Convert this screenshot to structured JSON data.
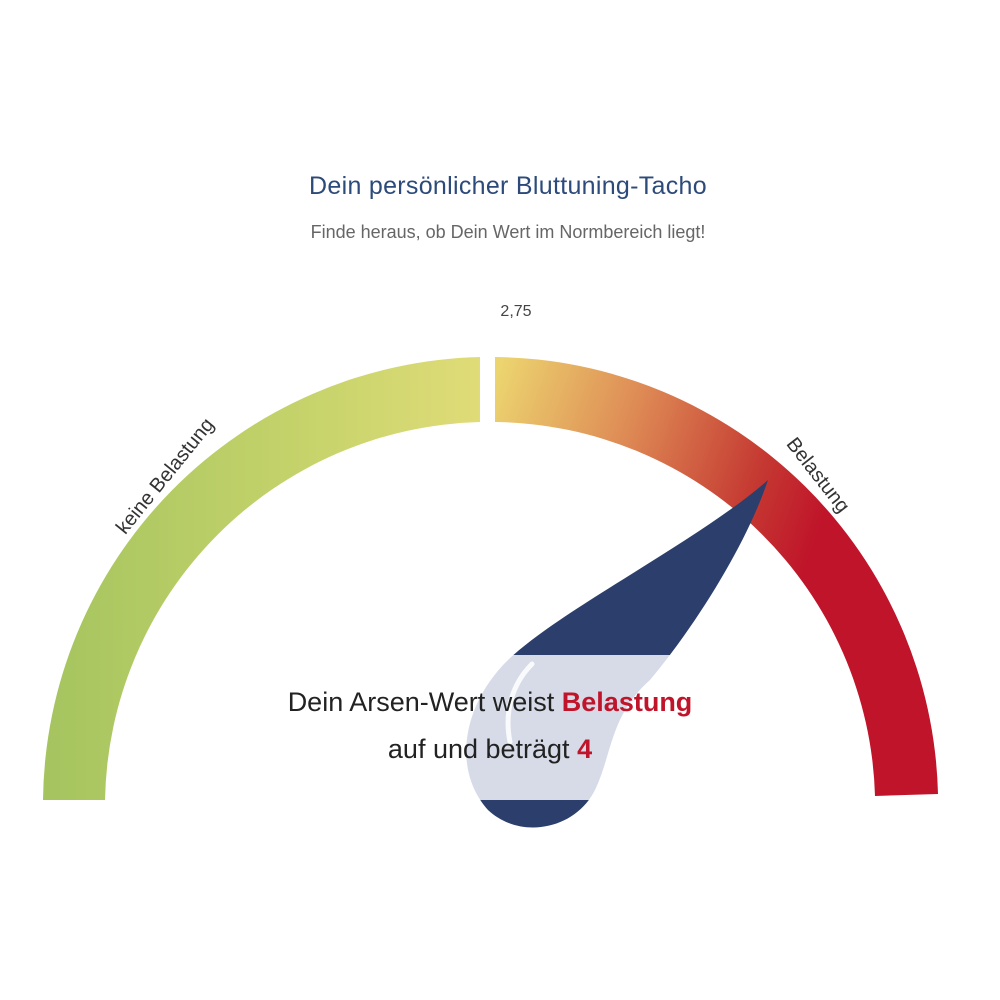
{
  "header": {
    "title": "Dein persönlicher Bluttuning-Tacho",
    "subtitle": "Finde heraus, ob Dein Wert im Normbereich liegt!"
  },
  "chart_data": {
    "type": "gauge",
    "threshold_label": "2,75",
    "threshold": 2.75,
    "value": 4,
    "segments": [
      {
        "label": "keine Belastung",
        "from_color": "#a4c45f",
        "to_color": "#e0dc78"
      },
      {
        "label": "Belastung",
        "from_color": "#e8d070",
        "to_color": "#c0142a"
      }
    ],
    "needle_color": "#2c3e6b"
  },
  "result": {
    "prefix": "Dein Arsen-Wert weist ",
    "status": "Belastung",
    "middle": "auf und beträgt ",
    "value": "4"
  },
  "colors": {
    "title": "#2c4a7a",
    "accent_red": "#c0142a",
    "needle_navy": "#2c3e6b"
  }
}
